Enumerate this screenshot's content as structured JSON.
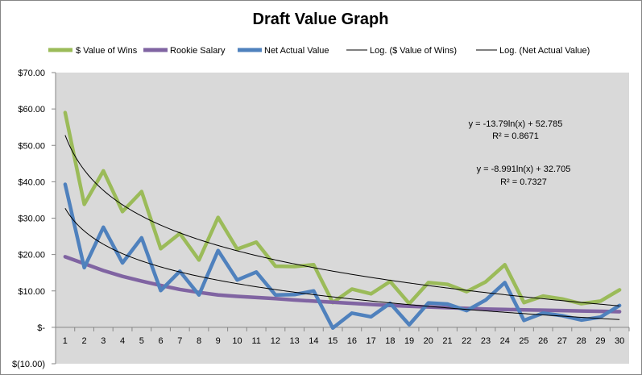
{
  "chart_data": {
    "type": "line",
    "title": "Draft Value Graph",
    "xlabel": "",
    "ylabel": "",
    "x": [
      1,
      2,
      3,
      4,
      5,
      6,
      7,
      8,
      9,
      10,
      11,
      12,
      13,
      14,
      15,
      16,
      17,
      18,
      19,
      20,
      21,
      22,
      23,
      24,
      25,
      26,
      27,
      28,
      29,
      30
    ],
    "ylim": [
      -10,
      70
    ],
    "y_ticks": [
      {
        "value": 70,
        "label": "$70.00"
      },
      {
        "value": 60,
        "label": "$60.00"
      },
      {
        "value": 50,
        "label": "$50.00"
      },
      {
        "value": 40,
        "label": "$40.00"
      },
      {
        "value": 30,
        "label": "$30.00"
      },
      {
        "value": 20,
        "label": "$20.00"
      },
      {
        "value": 10,
        "label": "$10.00"
      },
      {
        "value": 0,
        "label": "$-"
      },
      {
        "value": -10,
        "label": "$(10.00)"
      }
    ],
    "grid": false,
    "legend_position": "top",
    "series": [
      {
        "name": "$ Value of Wins",
        "color": "#9bbb59",
        "values": [
          59.0,
          33.8,
          43.0,
          31.8,
          37.3,
          21.6,
          25.8,
          18.5,
          30.2,
          21.5,
          23.4,
          16.8,
          16.7,
          17.2,
          6.8,
          10.5,
          9.2,
          12.6,
          6.5,
          12.3,
          11.8,
          9.8,
          12.5,
          17.2,
          6.8,
          8.6,
          7.8,
          6.5,
          7.2,
          10.3
        ]
      },
      {
        "name": "Rookie Salary",
        "color": "#8064a2",
        "values": [
          19.4,
          17.5,
          15.6,
          14.0,
          12.7,
          11.5,
          10.4,
          9.6,
          8.9,
          8.5,
          8.2,
          7.9,
          7.5,
          7.2,
          6.9,
          6.6,
          6.3,
          6.0,
          5.8,
          5.6,
          5.4,
          5.2,
          5.0,
          4.9,
          4.8,
          4.7,
          4.6,
          4.5,
          4.4,
          4.3
        ]
      },
      {
        "name": "Net Actual Value",
        "color": "#4f81bd",
        "values": [
          39.3,
          16.4,
          27.5,
          17.7,
          24.6,
          10.1,
          15.4,
          8.9,
          21.1,
          13.0,
          15.2,
          8.9,
          9.0,
          10.0,
          -0.2,
          3.9,
          2.9,
          6.6,
          0.7,
          6.7,
          6.4,
          4.6,
          7.5,
          12.3,
          1.9,
          3.9,
          3.2,
          2.0,
          2.8,
          6.0
        ]
      }
    ],
    "trendlines": [
      {
        "name": "Log. ($ Value of Wins)",
        "color": "#000000",
        "a": -13.79,
        "b": 52.785,
        "equation": "y = -13.79ln(x) + 52.785",
        "r2": "R² = 0.8671"
      },
      {
        "name": "Log. (Net Actual Value)",
        "color": "#000000",
        "a": -8.991,
        "b": 32.705,
        "equation": "y = -8.991ln(x) + 32.705",
        "r2": "R² = 0.7327"
      }
    ]
  }
}
